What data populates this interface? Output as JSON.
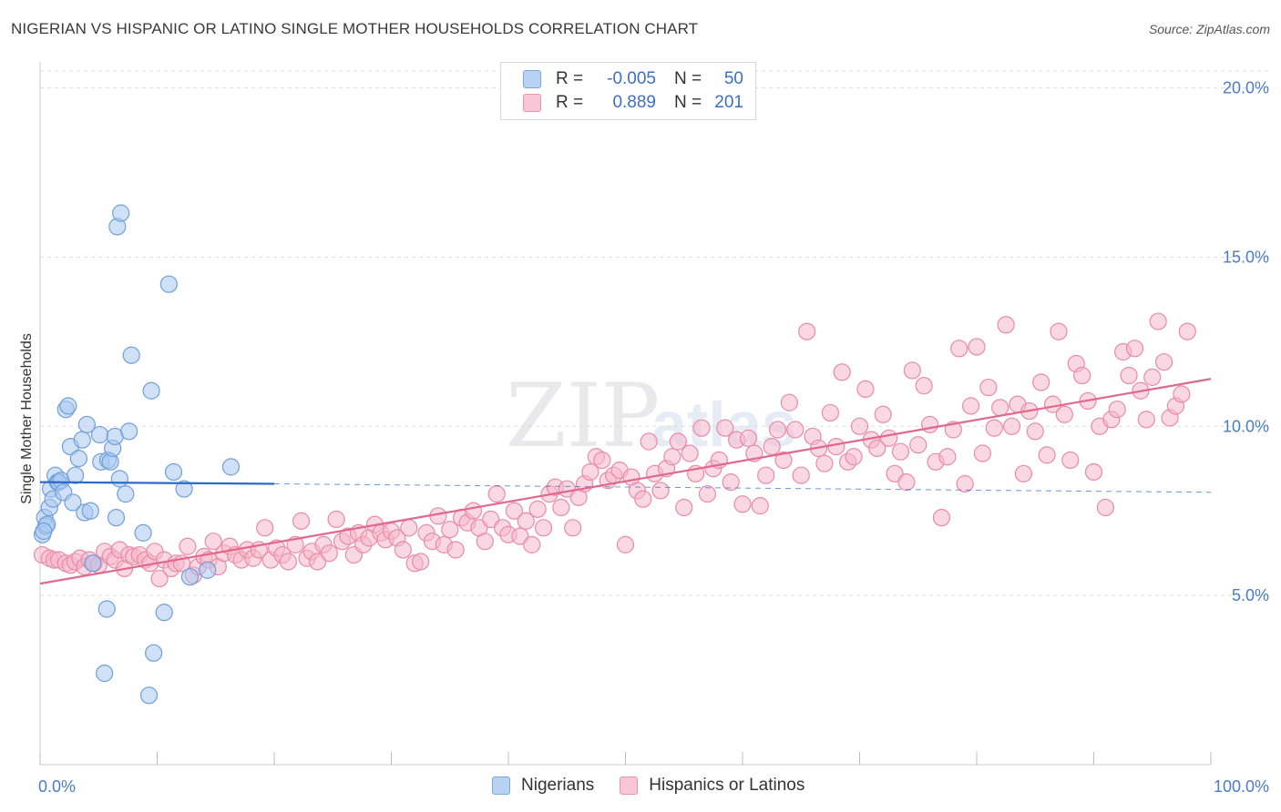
{
  "title": "NIGERIAN VS HISPANIC OR LATINO SINGLE MOTHER HOUSEHOLDS CORRELATION CHART",
  "source": "Source: ZipAtlas.com",
  "watermark": {
    "zip": "ZIP",
    "atlas": "atlas"
  },
  "colors": {
    "blue_fill": "#a9c8f0",
    "blue_stroke": "#6f9fd8",
    "blue_line": "#2a6bc9",
    "pink_fill": "#f6b8cc",
    "pink_stroke": "#e98aa8",
    "pink_line": "#e0688f",
    "grid": "#dddddd",
    "tick_text": "#4a7cc7"
  },
  "legend": {
    "rows": [
      {
        "r_label": "R =",
        "r_value": "-0.005",
        "n_label": "N =",
        "n_value": "50"
      },
      {
        "r_label": "R =",
        "r_value": "0.889",
        "n_label": "N =",
        "n_value": "201"
      }
    ]
  },
  "bottom_legend": {
    "series1": "Nigerians",
    "series2": "Hispanics or Latinos"
  },
  "chart_data": {
    "type": "scatter",
    "title": "NIGERIAN VS HISPANIC OR LATINO SINGLE MOTHER HOUSEHOLDS CORRELATION CHART",
    "xlabel": "",
    "ylabel": "Single Mother Households",
    "xlim": [
      0,
      100
    ],
    "ylim": [
      0,
      20.5
    ],
    "x_tick_labels": {
      "min": "0.0%",
      "max": "100.0%"
    },
    "y_ticks": [
      {
        "value": 5,
        "label": "5.0%"
      },
      {
        "value": 10,
        "label": "10.0%"
      },
      {
        "value": 15,
        "label": "15.0%"
      },
      {
        "value": 20,
        "label": "20.0%"
      }
    ],
    "series": [
      {
        "name": "Nigerians",
        "r": -0.005,
        "n": 50,
        "trend": {
          "x0": 0,
          "y0": 8.35,
          "x1": 20,
          "y1": 8.3,
          "dash_to": 100,
          "dash_y1": 8.05
        },
        "points": [
          [
            0.2,
            6.8
          ],
          [
            0.4,
            7.3
          ],
          [
            0.5,
            7.05
          ],
          [
            0.6,
            7.1
          ],
          [
            0.8,
            7.6
          ],
          [
            0.9,
            8.15
          ],
          [
            1.1,
            7.85
          ],
          [
            1.3,
            8.55
          ],
          [
            1.5,
            8.35
          ],
          [
            1.6,
            8.35
          ],
          [
            1.8,
            8.4
          ],
          [
            2.0,
            8.05
          ],
          [
            2.2,
            10.5
          ],
          [
            2.4,
            10.6
          ],
          [
            2.6,
            9.4
          ],
          [
            2.8,
            7.75
          ],
          [
            3.0,
            8.55
          ],
          [
            3.3,
            9.05
          ],
          [
            3.6,
            9.6
          ],
          [
            3.8,
            7.45
          ],
          [
            4.0,
            10.05
          ],
          [
            4.3,
            7.5
          ],
          [
            4.5,
            5.95
          ],
          [
            5.1,
            9.75
          ],
          [
            5.2,
            8.95
          ],
          [
            5.5,
            2.7
          ],
          [
            5.7,
            4.6
          ],
          [
            5.8,
            9.0
          ],
          [
            6.0,
            8.95
          ],
          [
            6.2,
            9.35
          ],
          [
            6.4,
            9.7
          ],
          [
            6.5,
            7.3
          ],
          [
            6.6,
            15.9
          ],
          [
            6.8,
            8.45
          ],
          [
            6.9,
            16.3
          ],
          [
            7.3,
            8.0
          ],
          [
            7.6,
            9.85
          ],
          [
            7.8,
            12.1
          ],
          [
            8.8,
            6.85
          ],
          [
            9.3,
            2.05
          ],
          [
            9.5,
            11.05
          ],
          [
            9.7,
            3.3
          ],
          [
            10.6,
            4.5
          ],
          [
            11.0,
            14.2
          ],
          [
            11.4,
            8.65
          ],
          [
            12.3,
            8.15
          ],
          [
            12.8,
            5.55
          ],
          [
            14.3,
            5.75
          ],
          [
            16.3,
            8.8
          ],
          [
            0.3,
            6.9
          ]
        ]
      },
      {
        "name": "Hispanics or Latinos",
        "r": 0.889,
        "n": 201,
        "trend": {
          "x0": 0,
          "y0": 5.35,
          "x1": 100,
          "y1": 11.4
        },
        "points": [
          [
            0.2,
            6.2
          ],
          [
            0.8,
            6.1
          ],
          [
            1.2,
            6.05
          ],
          [
            1.6,
            6.05
          ],
          [
            2.2,
            5.95
          ],
          [
            2.6,
            5.9
          ],
          [
            3.0,
            6.0
          ],
          [
            3.4,
            6.1
          ],
          [
            3.8,
            5.85
          ],
          [
            4.2,
            6.05
          ],
          [
            4.6,
            5.95
          ],
          [
            5.0,
            5.9
          ],
          [
            5.5,
            6.3
          ],
          [
            6.0,
            6.15
          ],
          [
            6.4,
            6.05
          ],
          [
            6.8,
            6.35
          ],
          [
            7.2,
            5.8
          ],
          [
            7.6,
            6.2
          ],
          [
            8.0,
            6.15
          ],
          [
            8.5,
            6.2
          ],
          [
            9.0,
            6.05
          ],
          [
            9.4,
            5.95
          ],
          [
            9.8,
            6.3
          ],
          [
            10.2,
            5.5
          ],
          [
            10.6,
            6.05
          ],
          [
            11.2,
            5.8
          ],
          [
            11.6,
            5.95
          ],
          [
            12.1,
            5.95
          ],
          [
            12.6,
            6.45
          ],
          [
            13.1,
            5.6
          ],
          [
            13.5,
            5.85
          ],
          [
            14.0,
            6.15
          ],
          [
            14.4,
            6.05
          ],
          [
            14.8,
            6.6
          ],
          [
            15.2,
            5.85
          ],
          [
            15.7,
            6.25
          ],
          [
            16.2,
            6.45
          ],
          [
            16.7,
            6.2
          ],
          [
            17.2,
            6.05
          ],
          [
            17.7,
            6.35
          ],
          [
            18.2,
            6.1
          ],
          [
            18.7,
            6.35
          ],
          [
            19.2,
            7.0
          ],
          [
            19.7,
            6.05
          ],
          [
            20.2,
            6.4
          ],
          [
            20.7,
            6.2
          ],
          [
            21.2,
            6.0
          ],
          [
            21.8,
            6.5
          ],
          [
            22.3,
            7.2
          ],
          [
            22.8,
            6.1
          ],
          [
            23.2,
            6.3
          ],
          [
            23.7,
            6.0
          ],
          [
            24.2,
            6.5
          ],
          [
            24.7,
            6.25
          ],
          [
            25.3,
            7.25
          ],
          [
            25.8,
            6.6
          ],
          [
            26.3,
            6.75
          ],
          [
            26.8,
            6.2
          ],
          [
            27.2,
            6.85
          ],
          [
            27.6,
            6.5
          ],
          [
            28.1,
            6.7
          ],
          [
            28.6,
            7.1
          ],
          [
            29.1,
            6.85
          ],
          [
            29.5,
            6.65
          ],
          [
            30.0,
            6.9
          ],
          [
            30.5,
            6.7
          ],
          [
            31.0,
            6.35
          ],
          [
            31.5,
            7.0
          ],
          [
            32.0,
            5.95
          ],
          [
            32.5,
            6.0
          ],
          [
            33.0,
            6.85
          ],
          [
            33.5,
            6.6
          ],
          [
            34.0,
            7.35
          ],
          [
            34.5,
            6.5
          ],
          [
            35.0,
            6.95
          ],
          [
            35.5,
            6.35
          ],
          [
            36.0,
            7.3
          ],
          [
            36.5,
            7.15
          ],
          [
            37.0,
            7.5
          ],
          [
            37.5,
            7.0
          ],
          [
            38.0,
            6.6
          ],
          [
            38.5,
            7.25
          ],
          [
            39.0,
            8.0
          ],
          [
            39.5,
            7.0
          ],
          [
            40.0,
            6.8
          ],
          [
            40.5,
            7.5
          ],
          [
            41.0,
            6.75
          ],
          [
            41.5,
            7.2
          ],
          [
            42.0,
            6.5
          ],
          [
            42.5,
            7.55
          ],
          [
            43.0,
            7.0
          ],
          [
            43.5,
            8.0
          ],
          [
            44.0,
            8.2
          ],
          [
            44.5,
            7.6
          ],
          [
            45.0,
            8.15
          ],
          [
            45.5,
            7.0
          ],
          [
            46.0,
            7.9
          ],
          [
            46.5,
            8.3
          ],
          [
            47.0,
            8.65
          ],
          [
            47.5,
            9.1
          ],
          [
            48.0,
            9.0
          ],
          [
            48.5,
            8.4
          ],
          [
            49.0,
            8.55
          ],
          [
            49.5,
            8.7
          ],
          [
            50.0,
            6.5
          ],
          [
            50.5,
            8.5
          ],
          [
            51.0,
            8.1
          ],
          [
            51.5,
            7.85
          ],
          [
            52.0,
            9.55
          ],
          [
            52.5,
            8.6
          ],
          [
            53.0,
            8.1
          ],
          [
            53.5,
            8.75
          ],
          [
            54.0,
            9.1
          ],
          [
            54.5,
            9.55
          ],
          [
            55.0,
            7.6
          ],
          [
            55.5,
            9.2
          ],
          [
            56.0,
            8.6
          ],
          [
            56.5,
            9.95
          ],
          [
            57.0,
            8.0
          ],
          [
            57.5,
            8.75
          ],
          [
            58.0,
            9.0
          ],
          [
            58.5,
            9.95
          ],
          [
            59.0,
            8.35
          ],
          [
            59.5,
            9.6
          ],
          [
            60.0,
            7.7
          ],
          [
            60.5,
            9.65
          ],
          [
            61.0,
            9.2
          ],
          [
            61.5,
            7.65
          ],
          [
            62.0,
            8.55
          ],
          [
            62.5,
            9.4
          ],
          [
            63.0,
            9.9
          ],
          [
            63.5,
            9.0
          ],
          [
            64.0,
            10.7
          ],
          [
            64.5,
            9.9
          ],
          [
            65.0,
            8.55
          ],
          [
            65.5,
            12.8
          ],
          [
            66.0,
            9.7
          ],
          [
            66.5,
            9.35
          ],
          [
            67.0,
            8.9
          ],
          [
            67.5,
            10.4
          ],
          [
            68.0,
            9.4
          ],
          [
            68.5,
            11.6
          ],
          [
            69.0,
            8.95
          ],
          [
            69.5,
            9.1
          ],
          [
            70.0,
            10.0
          ],
          [
            70.5,
            11.1
          ],
          [
            71.0,
            9.6
          ],
          [
            71.5,
            9.35
          ],
          [
            72.0,
            10.35
          ],
          [
            72.5,
            9.65
          ],
          [
            73.0,
            8.6
          ],
          [
            73.5,
            9.25
          ],
          [
            74.0,
            8.35
          ],
          [
            74.5,
            11.65
          ],
          [
            75.0,
            9.45
          ],
          [
            75.5,
            11.2
          ],
          [
            76.0,
            10.05
          ],
          [
            76.5,
            8.95
          ],
          [
            77.0,
            7.3
          ],
          [
            77.5,
            9.1
          ],
          [
            78.0,
            9.9
          ],
          [
            78.5,
            12.3
          ],
          [
            79.0,
            8.3
          ],
          [
            79.5,
            10.6
          ],
          [
            80.0,
            12.35
          ],
          [
            80.5,
            9.2
          ],
          [
            81.0,
            11.15
          ],
          [
            81.5,
            9.95
          ],
          [
            82.0,
            10.55
          ],
          [
            82.5,
            13.0
          ],
          [
            83.0,
            10.0
          ],
          [
            83.5,
            10.65
          ],
          [
            84.0,
            8.6
          ],
          [
            84.5,
            10.45
          ],
          [
            85.0,
            9.85
          ],
          [
            85.5,
            11.3
          ],
          [
            86.0,
            9.15
          ],
          [
            86.5,
            10.65
          ],
          [
            87.0,
            12.8
          ],
          [
            87.5,
            10.35
          ],
          [
            88.0,
            9.0
          ],
          [
            88.5,
            11.85
          ],
          [
            89.0,
            11.5
          ],
          [
            89.5,
            10.75
          ],
          [
            90.0,
            8.65
          ],
          [
            90.5,
            10.0
          ],
          [
            91.0,
            7.6
          ],
          [
            91.5,
            10.2
          ],
          [
            92.0,
            10.5
          ],
          [
            92.5,
            12.2
          ],
          [
            93.0,
            11.5
          ],
          [
            93.5,
            12.3
          ],
          [
            94.0,
            11.05
          ],
          [
            94.5,
            10.2
          ],
          [
            95.0,
            11.45
          ],
          [
            95.5,
            13.1
          ],
          [
            96.0,
            11.9
          ],
          [
            96.5,
            10.25
          ],
          [
            97.0,
            10.6
          ],
          [
            97.5,
            10.95
          ],
          [
            98.0,
            12.8
          ]
        ]
      }
    ]
  }
}
